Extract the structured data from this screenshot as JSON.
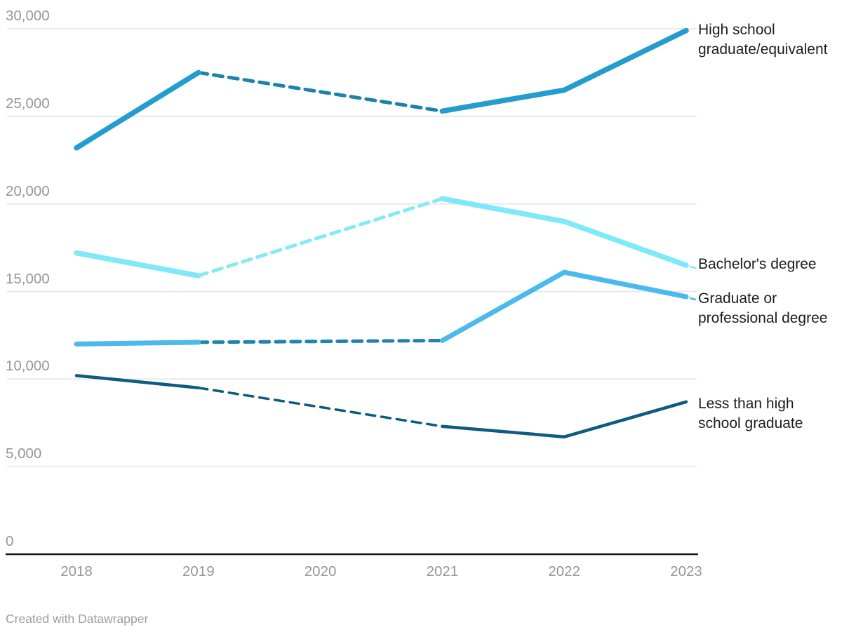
{
  "chart_data": {
    "type": "line",
    "title": "",
    "xlabel": "",
    "ylabel": "",
    "x": [
      2018,
      2019,
      2020,
      2021,
      2022,
      2023
    ],
    "xtick_labels": [
      "2018",
      "2019",
      "2020",
      "2021",
      "2022",
      "2023"
    ],
    "yticks": [
      0,
      5000,
      10000,
      15000,
      20000,
      25000,
      30000
    ],
    "ytick_labels": [
      "0",
      "5,000",
      "10,000",
      "15,000",
      "20,000",
      "25,000",
      "30,000"
    ],
    "ylim": [
      0,
      30000
    ],
    "grid": "horizontal",
    "legend_position": "direct-labels-right",
    "gap_note": "2020 value missing for all series; gap drawn as dashed interpolation",
    "series": [
      {
        "name": "High school graduate/equivalent",
        "label": "High school\ngraduate/equivalent",
        "values": [
          23200,
          27500,
          null,
          25300,
          26500,
          29900
        ],
        "color": "#239DCD",
        "dash_color": "#1D82A9",
        "stroke_width": 7.5,
        "dash_width": 5,
        "connector": false
      },
      {
        "name": "Bachelor's degree",
        "label": "Bachelor's degree",
        "values": [
          17200,
          15900,
          null,
          20300,
          19000,
          16500
        ],
        "color": "#7EE9F8",
        "dash_color": "#85EAF2",
        "stroke_width": 7.5,
        "dash_width": 5,
        "connector": true
      },
      {
        "name": "Graduate or professional degree",
        "label": "Graduate or\nprofessional degree",
        "values": [
          12000,
          12100,
          null,
          12200,
          16100,
          14700
        ],
        "color": "#4CB9EC",
        "dash_color": "#1F84AC",
        "stroke_width": 7,
        "dash_width": 5,
        "connector": true
      },
      {
        "name": "Less than high school graduate",
        "label": "Less than high\nschool graduate",
        "values": [
          10200,
          9500,
          null,
          7300,
          6700,
          8700
        ],
        "color": "#0D5B7E",
        "dash_color": "#0D5B7E",
        "stroke_width": 4.5,
        "dash_width": 3.5,
        "connector": false
      }
    ]
  },
  "footer": {
    "credit": "Created with Datawrapper"
  },
  "colors": {
    "grid": "#E7E7E7",
    "axis": "#141414",
    "tick_text": "#969696",
    "label_text": "#1D1D1D",
    "background": "#FFFFFF"
  }
}
